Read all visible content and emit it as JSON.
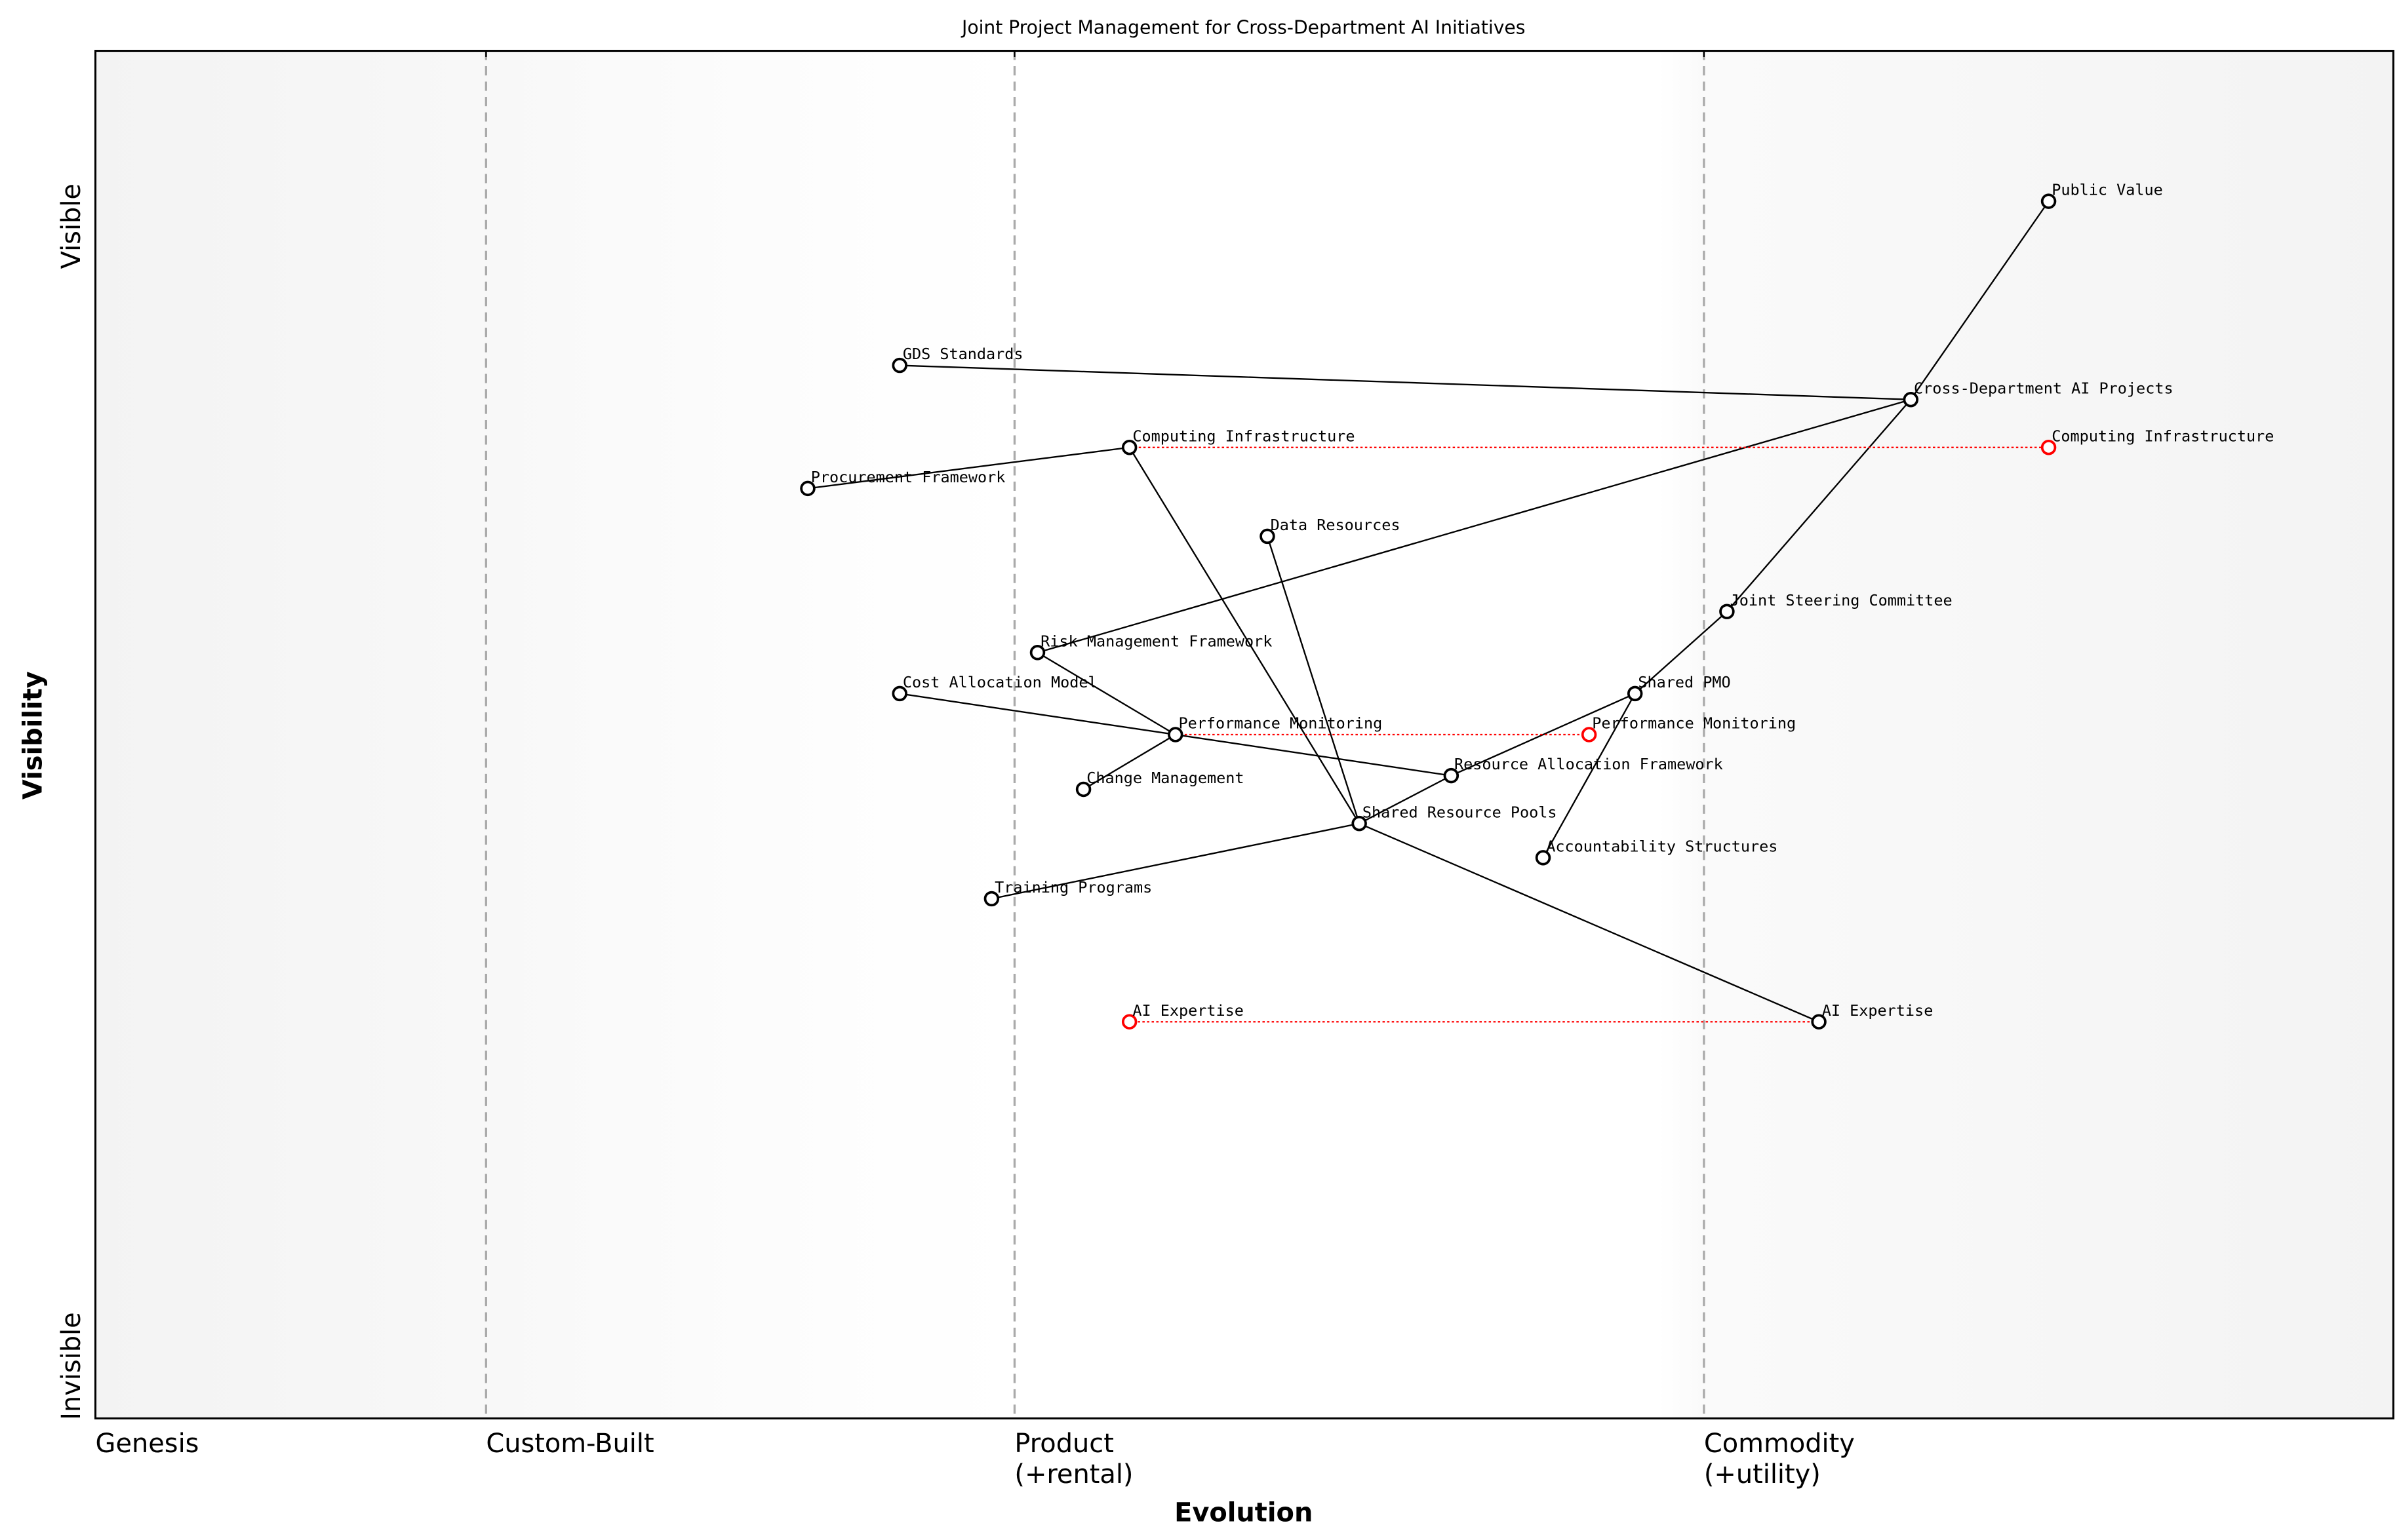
{
  "title": "Joint Project Management for Cross-Department AI Initiatives",
  "x_axis": {
    "label": "Evolution",
    "stages": [
      {
        "name": "Genesis",
        "value": 0.0
      },
      {
        "name": "Custom-Built",
        "value": 0.17
      },
      {
        "name": "Product\n(+rental)",
        "value": 0.4
      },
      {
        "name": "Commodity\n(+utility)",
        "value": 0.7
      }
    ],
    "range": [
      0,
      1
    ]
  },
  "y_axis": {
    "label": "Visibility",
    "top_label": "Visible",
    "bottom_label": "Invisible",
    "range": [
      0,
      1
    ]
  },
  "colors": {
    "node": "#000000",
    "evolution": "#ff0000",
    "stage_line": "#aaaaaa",
    "background_edge": "#f3f3f3"
  },
  "components": [
    {
      "id": "pv",
      "name": "Public Value",
      "evolution": 0.85,
      "visibility": 0.89
    },
    {
      "id": "gds",
      "name": "GDS Standards",
      "evolution": 0.35,
      "visibility": 0.77
    },
    {
      "id": "cdap",
      "name": "Cross-Department AI Projects",
      "evolution": 0.79,
      "visibility": 0.745
    },
    {
      "id": "ci",
      "name": "Computing Infrastructure",
      "evolution": 0.45,
      "visibility": 0.71
    },
    {
      "id": "pf",
      "name": "Procurement Framework",
      "evolution": 0.31,
      "visibility": 0.68
    },
    {
      "id": "dr",
      "name": "Data Resources",
      "evolution": 0.51,
      "visibility": 0.645
    },
    {
      "id": "jsc",
      "name": "Joint Steering Committee",
      "evolution": 0.71,
      "visibility": 0.59
    },
    {
      "id": "rmf",
      "name": "Risk Management Framework",
      "evolution": 0.41,
      "visibility": 0.56
    },
    {
      "id": "cam",
      "name": "Cost Allocation Model",
      "evolution": 0.35,
      "visibility": 0.53
    },
    {
      "id": "pmo",
      "name": "Shared PMO",
      "evolution": 0.67,
      "visibility": 0.53
    },
    {
      "id": "pm",
      "name": "Performance Monitoring",
      "evolution": 0.47,
      "visibility": 0.5
    },
    {
      "id": "raf",
      "name": "Resource Allocation Framework",
      "evolution": 0.59,
      "visibility": 0.47
    },
    {
      "id": "cm",
      "name": "Change Management",
      "evolution": 0.43,
      "visibility": 0.46
    },
    {
      "id": "srp",
      "name": "Shared Resource Pools",
      "evolution": 0.55,
      "visibility": 0.435
    },
    {
      "id": "as",
      "name": "Accountability Structures",
      "evolution": 0.63,
      "visibility": 0.41
    },
    {
      "id": "tp",
      "name": "Training Programs",
      "evolution": 0.39,
      "visibility": 0.38
    },
    {
      "id": "aie",
      "name": "AI Expertise",
      "evolution": 0.75,
      "visibility": 0.29
    }
  ],
  "links": [
    [
      "pv",
      "cdap"
    ],
    [
      "gds",
      "cdap"
    ],
    [
      "cdap",
      "rmf"
    ],
    [
      "cdap",
      "jsc"
    ],
    [
      "jsc",
      "pmo"
    ],
    [
      "pmo",
      "raf"
    ],
    [
      "pmo",
      "as"
    ],
    [
      "pf",
      "ci"
    ],
    [
      "ci",
      "srp"
    ],
    [
      "dr",
      "srp"
    ],
    [
      "rmf",
      "pm"
    ],
    [
      "cam",
      "raf"
    ],
    [
      "pm",
      "cm"
    ],
    [
      "raf",
      "srp"
    ],
    [
      "srp",
      "tp"
    ],
    [
      "srp",
      "aie"
    ]
  ],
  "evolutions": [
    {
      "component": "ci",
      "name": "Computing Infrastructure",
      "to_evolution": 0.85
    },
    {
      "component": "pm",
      "name": "Performance Monitoring",
      "to_evolution": 0.65
    },
    {
      "component": "aie",
      "name": "AI Expertise",
      "to_evolution": 0.45
    }
  ]
}
